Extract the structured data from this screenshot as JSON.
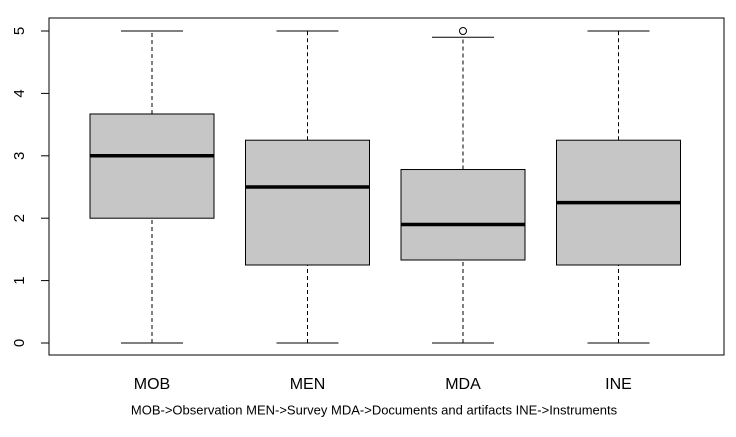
{
  "chart_data": {
    "type": "box",
    "categories": [
      "MOB",
      "MEN",
      "MDA",
      "INE"
    ],
    "boxes": [
      {
        "min": 0,
        "q1": 2.0,
        "median": 3.0,
        "q3": 3.67,
        "max": 5,
        "outliers": []
      },
      {
        "min": 0,
        "q1": 1.25,
        "median": 2.5,
        "q3": 3.25,
        "max": 5,
        "outliers": []
      },
      {
        "min": 0,
        "q1": 1.33,
        "median": 1.9,
        "q3": 2.78,
        "max": 4.9,
        "outliers": [
          5
        ]
      },
      {
        "min": 0,
        "q1": 1.25,
        "median": 2.25,
        "q3": 3.25,
        "max": 5,
        "outliers": []
      }
    ],
    "color": "#c6c6c6",
    "ylim": [
      0,
      5
    ],
    "yticks": [
      0,
      1,
      2,
      3,
      4,
      5
    ],
    "caption": "MOB->Observation  MEN->Survey  MDA->Documents and artifacts  INE->Instruments"
  }
}
